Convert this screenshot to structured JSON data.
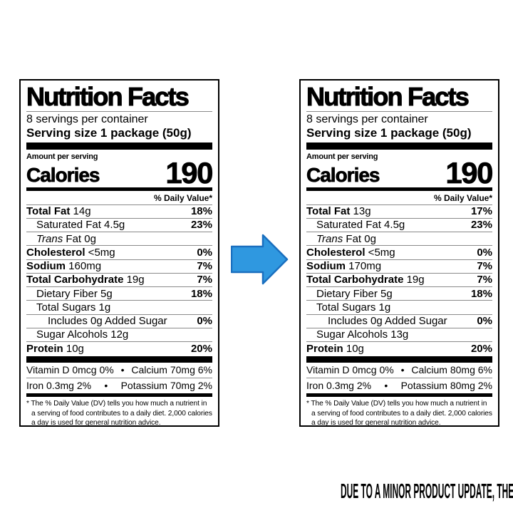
{
  "caption": "DUE TO A MINOR PRODUCT UPDATE, THERE IS A CHANCE YOU WILL RECEIVE EITHER OF THESE TWO PRODUCTS",
  "colors": {
    "arrow_fill": "#2F98E0",
    "arrow_stroke": "#1A6FBF",
    "label_border": "#000000",
    "text": "#000000"
  },
  "labels": [
    {
      "id": "before",
      "title": "Nutrition Facts",
      "servings_per_container": "8 servings per container",
      "serving_size": "Serving size 1 package (50g)",
      "amount_per_serving": "Amount per serving",
      "calories_label": "Calories",
      "calories_value": "190",
      "daily_value_header": "% Daily Value*",
      "rows": [
        {
          "name_bold": "Total Fat",
          "text": " 14g",
          "dv": "18%",
          "indent": 0
        },
        {
          "text": "Saturated Fat 4.5g",
          "dv": "23%",
          "indent": 1
        },
        {
          "name_italic": "Trans",
          "text": " Fat 0g",
          "dv": "",
          "indent": 1
        },
        {
          "name_bold": "Cholesterol",
          "text": " <5mg",
          "dv": "0%",
          "indent": 0
        },
        {
          "name_bold": "Sodium",
          "text": " 160mg",
          "dv": "7%",
          "indent": 0
        },
        {
          "name_bold": "Total Carbohydrate",
          "text": " 19g",
          "dv": "7%",
          "indent": 0
        },
        {
          "text": "Dietary Fiber 5g",
          "dv": "18%",
          "indent": 1
        },
        {
          "text": "Total Sugars 1g",
          "dv": "",
          "indent": 1
        },
        {
          "text": "Includes 0g Added Sugar",
          "dv": "0%",
          "indent": 2
        },
        {
          "text": "Sugar Alcohols 12g",
          "dv": "",
          "indent": 1
        },
        {
          "name_bold": "Protein",
          "text": " 10g",
          "dv": "20%",
          "indent": 0
        }
      ],
      "bullet": "•",
      "micros": [
        {
          "left": "Vitamin D 0mcg 0%",
          "right": "Calcium 70mg 6%"
        },
        {
          "left": "Iron 0.3mg 2%",
          "right": "Potassium 70mg 2%"
        }
      ],
      "footnote": "* The % Daily Value (DV) tells you how much a nutrient in a serving of food contributes to a daily diet. 2,000 calories a day is used for general nutrition advice."
    },
    {
      "id": "after",
      "title": "Nutrition Facts",
      "servings_per_container": "8 servings per container",
      "serving_size": "Serving size 1 package (50g)",
      "amount_per_serving": "Amount per serving",
      "calories_label": "Calories",
      "calories_value": "190",
      "daily_value_header": "% Daily Value*",
      "rows": [
        {
          "name_bold": "Total Fat",
          "text": " 13g",
          "dv": "17%",
          "indent": 0
        },
        {
          "text": "Saturated Fat 4.5g",
          "dv": "23%",
          "indent": 1
        },
        {
          "name_italic": "Trans",
          "text": " Fat 0g",
          "dv": "",
          "indent": 1
        },
        {
          "name_bold": "Cholesterol",
          "text": " <5mg",
          "dv": "0%",
          "indent": 0
        },
        {
          "name_bold": "Sodium",
          "text": " 170mg",
          "dv": "7%",
          "indent": 0
        },
        {
          "name_bold": "Total Carbohydrate",
          "text": " 19g",
          "dv": "7%",
          "indent": 0
        },
        {
          "text": "Dietary Fiber 5g",
          "dv": "18%",
          "indent": 1
        },
        {
          "text": "Total Sugars 1g",
          "dv": "",
          "indent": 1
        },
        {
          "text": "Includes 0g Added Sugar",
          "dv": "0%",
          "indent": 2
        },
        {
          "text": "Sugar Alcohols 13g",
          "dv": "",
          "indent": 1
        },
        {
          "name_bold": "Protein",
          "text": " 10g",
          "dv": "20%",
          "indent": 0
        }
      ],
      "bullet": "•",
      "micros": [
        {
          "left": "Vitamin D 0mcg 0%",
          "right": "Calcium 80mg 6%"
        },
        {
          "left": "Iron 0.3mg 2%",
          "right": "Potassium 80mg 2%"
        }
      ],
      "footnote": "* The % Daily Value (DV) tells you how much a nutrient in a serving of food contributes to a daily diet. 2,000 calories a day is used for general nutrition advice."
    }
  ]
}
